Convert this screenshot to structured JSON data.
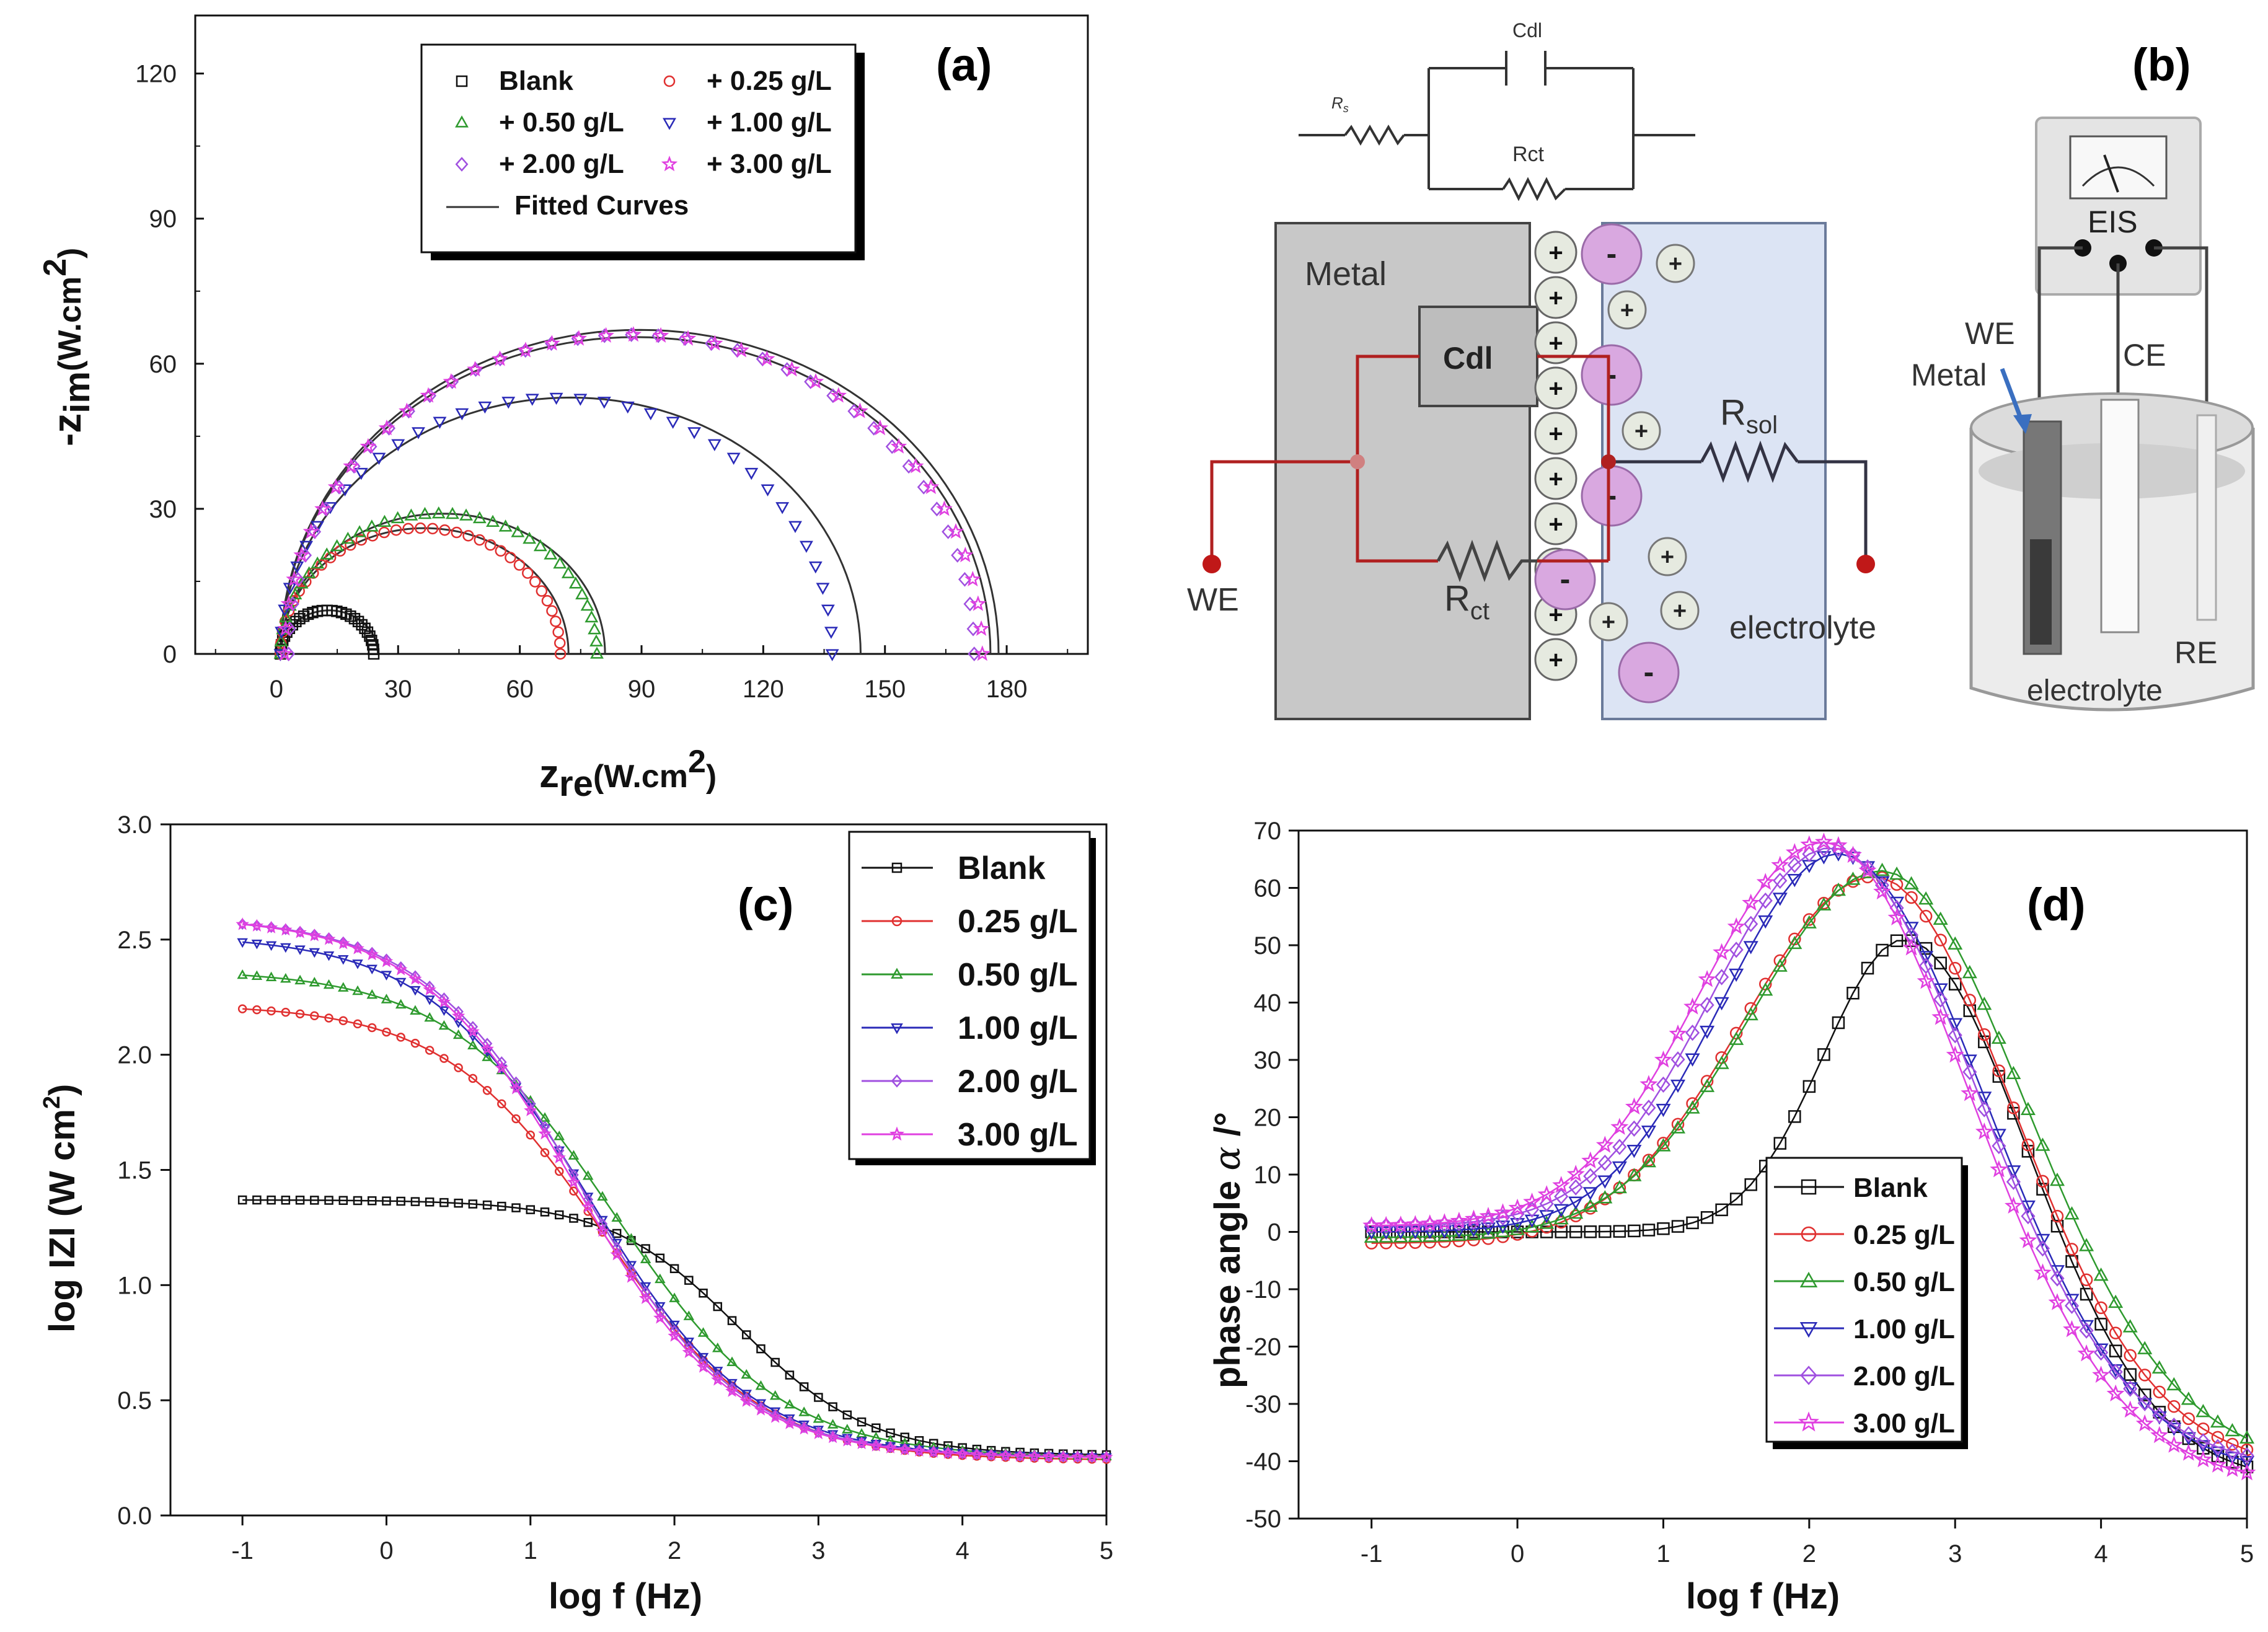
{
  "colors": {
    "Blank": "#111111",
    "0.25": "#e03030",
    "0.50": "#2e9a2e",
    "1.00": "#2a2ab8",
    "2.00": "#a050e0",
    "3.00": "#e040e0",
    "fit": "#333333",
    "metal": "#c8c8c8",
    "electrolyte": "#dce4f4",
    "wire_red": "#b02020",
    "wire_dark": "#333344",
    "anion": "#d9a8e0",
    "cation": "#e6eae0"
  },
  "chart_data": [
    {
      "panel": "(a)",
      "type": "scatter",
      "xlabel_main": "z",
      "xlabel_sub": "re",
      "xlabel_tail": "(W.cm",
      "xlabel_sup": "2",
      "xlabel_close": ")",
      "ylabel_main": "-z",
      "ylabel_sub": "im",
      "ylabel_tail": "(W.cm",
      "ylabel_sup": "2",
      "ylabel_close": ")",
      "xlim": [
        -20,
        200
      ],
      "ylim": [
        0,
        132
      ],
      "xticks": [
        0,
        30,
        60,
        90,
        120,
        150,
        180
      ],
      "yticks": [
        0,
        30,
        60,
        90,
        120
      ],
      "legend_position": "top-center",
      "legend": [
        {
          "label": "Blank",
          "marker": "square",
          "color_key": "Blank"
        },
        {
          "label": "+ 0.25 g/L",
          "marker": "circle",
          "color_key": "0.25"
        },
        {
          "label": "+ 0.50 g/L",
          "marker": "triangle-up",
          "color_key": "0.50"
        },
        {
          "label": "+ 1.00 g/L",
          "marker": "triangle-down",
          "color_key": "1.00"
        },
        {
          "label": "+ 2.00 g/L",
          "marker": "diamond",
          "color_key": "2.00"
        },
        {
          "label": "+ 3.00 g/L",
          "marker": "star",
          "color_key": "3.00"
        },
        {
          "label": "Fitted Curves",
          "marker": "line",
          "color_key": "fit"
        }
      ],
      "series": [
        {
          "name": "Blank",
          "color_key": "Blank",
          "marker": "square",
          "x_start": 1,
          "x_end": 24,
          "peak": 9,
          "points": 30
        },
        {
          "name": "+ 0.25 g/L",
          "color_key": "0.25",
          "marker": "circle",
          "x_start": 1,
          "x_end": 70,
          "peak": 26,
          "points": 36
        },
        {
          "name": "+ 0.50 g/L",
          "color_key": "0.50",
          "marker": "triangle-up",
          "x_start": 1,
          "x_end": 79,
          "peak": 29,
          "points": 36
        },
        {
          "name": "+ 1.00 g/L",
          "color_key": "1.00",
          "marker": "triangle-down",
          "x_start": 1,
          "x_end": 137,
          "peak": 53,
          "points": 36
        },
        {
          "name": "+ 2.00 g/L",
          "color_key": "2.00",
          "marker": "diamond",
          "x_start": 3,
          "x_end": 172,
          "peak": 66,
          "points": 40
        },
        {
          "name": "+ 3.00 g/L",
          "color_key": "3.00",
          "marker": "star",
          "x_start": 2,
          "x_end": 174,
          "peak": 66,
          "points": 40
        }
      ],
      "fitted_curves": [
        {
          "x_start": 1,
          "x_end": 25,
          "peak": 9
        },
        {
          "x_start": 1,
          "x_end": 72,
          "peak": 26
        },
        {
          "x_start": 1,
          "x_end": 81,
          "peak": 29
        },
        {
          "x_start": 1,
          "x_end": 144,
          "peak": 53
        },
        {
          "x_start": 1,
          "x_end": 176,
          "peak": 65.5
        },
        {
          "x_start": 1,
          "x_end": 178,
          "peak": 67
        }
      ]
    },
    {
      "panel": "(c)",
      "type": "line",
      "xlabel": "log f (Hz)",
      "ylabel_main": "log IZI (W cm",
      "ylabel_sup": "2",
      "ylabel_close": ")",
      "xlim": [
        -1.5,
        5
      ],
      "ylim": [
        0,
        3
      ],
      "xticks": [
        -1,
        0,
        1,
        2,
        3,
        4,
        5
      ],
      "yticks": [
        "0.0",
        "0.5",
        "1.0",
        "1.5",
        "2.0",
        "2.5",
        "3.0"
      ],
      "legend_position": "top-right",
      "legend": [
        {
          "label": "Blank",
          "marker": "square",
          "color_key": "Blank"
        },
        {
          "label": "0.25 g/L",
          "marker": "circle",
          "color_key": "0.25"
        },
        {
          "label": "0.50 g/L",
          "marker": "triangle-up",
          "color_key": "0.50"
        },
        {
          "label": "1.00 g/L",
          "marker": "triangle-down",
          "color_key": "1.00"
        },
        {
          "label": "2.00 g/L",
          "marker": "diamond",
          "color_key": "2.00"
        },
        {
          "label": "3.00 g/L",
          "marker": "star",
          "color_key": "3.00"
        }
      ],
      "series": [
        {
          "name": "Blank",
          "color_key": "Blank",
          "marker": "square",
          "r_low": 1.37,
          "r_high": 0.26,
          "fc": 2.45,
          "width": 0.45
        },
        {
          "name": "0.25 g/L",
          "color_key": "0.25",
          "marker": "circle",
          "r_low": 2.22,
          "r_high": 0.24,
          "fc": 1.5,
          "width": 0.55
        },
        {
          "name": "0.50 g/L",
          "color_key": "0.50",
          "marker": "triangle-up",
          "r_low": 2.37,
          "r_high": 0.25,
          "fc": 1.58,
          "width": 0.58
        },
        {
          "name": "1.00 g/L",
          "color_key": "1.00",
          "marker": "triangle-down",
          "r_low": 2.52,
          "r_high": 0.25,
          "fc": 1.4,
          "width": 0.56
        },
        {
          "name": "2.00 g/L",
          "color_key": "2.00",
          "marker": "diamond",
          "r_low": 2.6,
          "r_high": 0.25,
          "fc": 1.35,
          "width": 0.55
        },
        {
          "name": "3.00 g/L",
          "color_key": "3.00",
          "marker": "star",
          "r_low": 2.6,
          "r_high": 0.25,
          "fc": 1.32,
          "width": 0.55
        }
      ]
    },
    {
      "panel": "(d)",
      "type": "line",
      "xlabel": "log f (Hz)",
      "ylabel_main": "phase angle ",
      "ylabel_symbol": "α",
      "ylabel_unit": " /°",
      "xlim": [
        -1.5,
        5
      ],
      "ylim": [
        -50,
        70
      ],
      "xticks": [
        -1,
        0,
        1,
        2,
        3,
        4,
        5
      ],
      "yticks": [
        -50,
        -40,
        -30,
        -20,
        -10,
        0,
        10,
        20,
        30,
        40,
        50,
        60,
        70
      ],
      "legend_position": "bottom-center",
      "legend": [
        {
          "label": "Blank",
          "marker": "square",
          "color_key": "Blank"
        },
        {
          "label": "0.25 g/L",
          "marker": "circle",
          "color_key": "0.25"
        },
        {
          "label": "0.50 g/L",
          "marker": "triangle-up",
          "color_key": "0.50"
        },
        {
          "label": "1.00 g/L",
          "marker": "triangle-down",
          "color_key": "1.00"
        },
        {
          "label": "2.00 g/L",
          "marker": "diamond",
          "color_key": "2.00"
        },
        {
          "label": "3.00 g/L",
          "marker": "star",
          "color_key": "3.00"
        }
      ],
      "series": [
        {
          "name": "Blank",
          "color_key": "Blank",
          "marker": "square",
          "peak_x": 2.65,
          "peak_y": 51,
          "sigma_left": 0.55,
          "sigma_right": 0.85,
          "end_y": -41,
          "base": 0
        },
        {
          "name": "0.25 g/L",
          "color_key": "0.25",
          "marker": "circle",
          "peak_x": 2.45,
          "peak_y": 62,
          "sigma_left": 0.9,
          "sigma_right": 0.95,
          "end_y": -38,
          "base": -2
        },
        {
          "name": "0.50 g/L",
          "color_key": "0.50",
          "marker": "triangle-up",
          "peak_x": 2.5,
          "peak_y": 63,
          "sigma_left": 0.9,
          "sigma_right": 0.98,
          "end_y": -36,
          "base": -1
        },
        {
          "name": "1.00 g/L",
          "color_key": "1.00",
          "marker": "triangle-down",
          "peak_x": 2.2,
          "peak_y": 66,
          "sigma_left": 0.8,
          "sigma_right": 1.0,
          "end_y": -40,
          "base": 0
        },
        {
          "name": "2.00 g/L",
          "color_key": "2.00",
          "marker": "diamond",
          "peak_x": 2.15,
          "peak_y": 67,
          "sigma_left": 0.82,
          "sigma_right": 1.0,
          "end_y": -39,
          "base": 1
        },
        {
          "name": "3.00 g/L",
          "color_key": "3.00",
          "marker": "star",
          "peak_x": 2.1,
          "peak_y": 68,
          "sigma_left": 0.85,
          "sigma_right": 1.0,
          "end_y": -42,
          "base": 1
        }
      ]
    }
  ],
  "diagram": {
    "panel": "(b)",
    "cdl_top": "Cdl",
    "rs_small": "R",
    "rs_small_sub": "s",
    "rct_small": "Rct",
    "metal": "Metal",
    "cdl_box": "Cdl",
    "rsol": "R",
    "rsol_sub": "sol",
    "rct": "R",
    "rct_sub": "ct",
    "we": "WE",
    "electrolyte": "electrolyte",
    "plus": "+",
    "minus": "-"
  },
  "cell": {
    "eis": "EIS",
    "we": "WE",
    "metal": "Metal",
    "ce": "CE",
    "re": "RE",
    "electrolyte": "electrolyte"
  }
}
